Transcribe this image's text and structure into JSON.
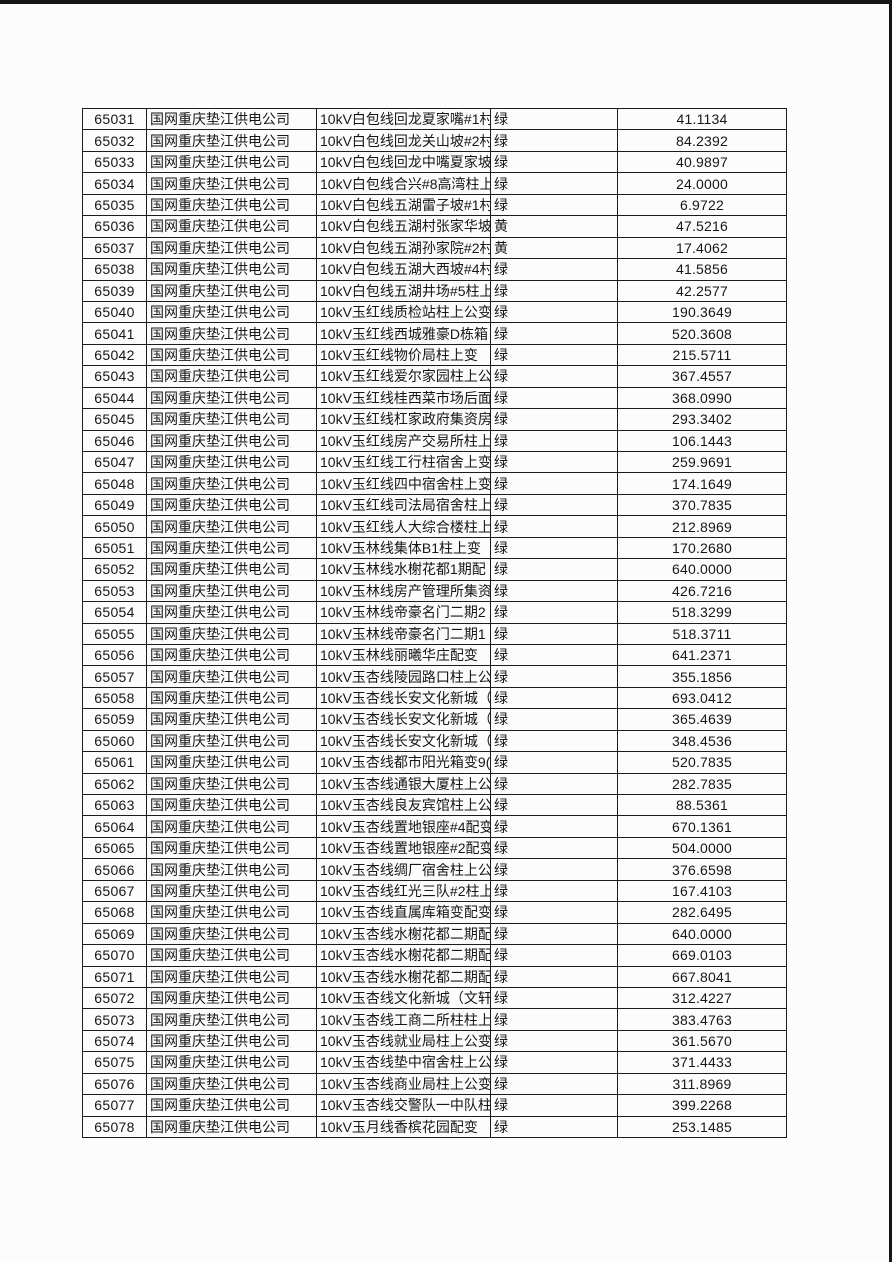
{
  "page": {
    "background_color": "#fcfcfc",
    "scan_edge_color": "#161616"
  },
  "table": {
    "columns": [
      "id",
      "company",
      "description",
      "status",
      "value"
    ],
    "status_colors": {
      "green_label": "绿",
      "yellow_label": "黄"
    },
    "rows": [
      {
        "id": "65031",
        "company": "国网重庆垫江供电公司",
        "description": "10kV白包线回龙夏家嘴#1村",
        "status": "绿",
        "value": "41.1134"
      },
      {
        "id": "65032",
        "company": "国网重庆垫江供电公司",
        "description": "10kV白包线回龙关山坡#2村",
        "status": "绿",
        "value": "84.2392"
      },
      {
        "id": "65033",
        "company": "国网重庆垫江供电公司",
        "description": "10kV白包线回龙中嘴夏家坡",
        "status": "绿",
        "value": "40.9897"
      },
      {
        "id": "65034",
        "company": "国网重庆垫江供电公司",
        "description": "10kV白包线合兴#8高湾柱上",
        "status": "绿",
        "value": "24.0000"
      },
      {
        "id": "65035",
        "company": "国网重庆垫江供电公司",
        "description": "10kV白包线五湖雷子坡#1村",
        "status": "绿",
        "value": "6.9722"
      },
      {
        "id": "65036",
        "company": "国网重庆垫江供电公司",
        "description": "10kV白包线五湖村张家华坡",
        "status": "黄",
        "value": "47.5216"
      },
      {
        "id": "65037",
        "company": "国网重庆垫江供电公司",
        "description": "10kV白包线五湖孙家院#2村",
        "status": "黄",
        "value": "17.4062"
      },
      {
        "id": "65038",
        "company": "国网重庆垫江供电公司",
        "description": "10kV白包线五湖大西坡#4村",
        "status": "绿",
        "value": "41.5856"
      },
      {
        "id": "65039",
        "company": "国网重庆垫江供电公司",
        "description": "10kV白包线五湖井场#5柱上",
        "status": "绿",
        "value": "42.2577"
      },
      {
        "id": "65040",
        "company": "国网重庆垫江供电公司",
        "description": "10kV玉红线质检站柱上公变",
        "status": "绿",
        "value": "190.3649"
      },
      {
        "id": "65041",
        "company": "国网重庆垫江供电公司",
        "description": "10kV玉红线西城雅豪D栋箱",
        "status": "绿",
        "value": "520.3608"
      },
      {
        "id": "65042",
        "company": "国网重庆垫江供电公司",
        "description": "10kV玉红线物价局柱上变",
        "status": "绿",
        "value": "215.5711"
      },
      {
        "id": "65043",
        "company": "国网重庆垫江供电公司",
        "description": "10kV玉红线爱尔家园柱上公",
        "status": "绿",
        "value": "367.4557"
      },
      {
        "id": "65044",
        "company": "国网重庆垫江供电公司",
        "description": "10kV玉红线桂西菜市场后面",
        "status": "绿",
        "value": "368.0990"
      },
      {
        "id": "65045",
        "company": "国网重庆垫江供电公司",
        "description": "10kV玉红线杠家政府集资房",
        "status": "绿",
        "value": "293.3402"
      },
      {
        "id": "65046",
        "company": "国网重庆垫江供电公司",
        "description": "10kV玉红线房产交易所柱上",
        "status": "绿",
        "value": "106.1443"
      },
      {
        "id": "65047",
        "company": "国网重庆垫江供电公司",
        "description": "10kV玉红线工行柱宿舍上变",
        "status": "绿",
        "value": "259.9691"
      },
      {
        "id": "65048",
        "company": "国网重庆垫江供电公司",
        "description": "10kV玉红线四中宿舍柱上变",
        "status": "绿",
        "value": "174.1649"
      },
      {
        "id": "65049",
        "company": "国网重庆垫江供电公司",
        "description": "10kV玉红线司法局宿舍柱上",
        "status": "绿",
        "value": "370.7835"
      },
      {
        "id": "65050",
        "company": "国网重庆垫江供电公司",
        "description": "10kV玉红线人大综合楼柱上",
        "status": "绿",
        "value": "212.8969"
      },
      {
        "id": "65051",
        "company": "国网重庆垫江供电公司",
        "description": "10kV玉林线集体B1柱上变",
        "status": "绿",
        "value": "170.2680"
      },
      {
        "id": "65052",
        "company": "国网重庆垫江供电公司",
        "description": "10kV玉林线水榭花都1期配",
        "status": "绿",
        "value": "640.0000"
      },
      {
        "id": "65053",
        "company": "国网重庆垫江供电公司",
        "description": "10kV玉林线房产管理所集资",
        "status": "绿",
        "value": "426.7216"
      },
      {
        "id": "65054",
        "company": "国网重庆垫江供电公司",
        "description": "10kV玉林线帝豪名门二期2",
        "status": "绿",
        "value": "518.3299"
      },
      {
        "id": "65055",
        "company": "国网重庆垫江供电公司",
        "description": "10kV玉林线帝豪名门二期1",
        "status": "绿",
        "value": "518.3711"
      },
      {
        "id": "65056",
        "company": "国网重庆垫江供电公司",
        "description": "10kV玉林线丽曦华庄配变",
        "status": "绿",
        "value": "641.2371"
      },
      {
        "id": "65057",
        "company": "国网重庆垫江供电公司",
        "description": "10kV玉杏线陵园路口柱上公",
        "status": "绿",
        "value": "355.1856"
      },
      {
        "id": "65058",
        "company": "国网重庆垫江供电公司",
        "description": "10kV玉杏线长安文化新城（",
        "status": "绿",
        "value": "693.0412"
      },
      {
        "id": "65059",
        "company": "国网重庆垫江供电公司",
        "description": "10kV玉杏线长安文化新城（",
        "status": "绿",
        "value": "365.4639"
      },
      {
        "id": "65060",
        "company": "国网重庆垫江供电公司",
        "description": "10kV玉杏线长安文化新城（",
        "status": "绿",
        "value": "348.4536"
      },
      {
        "id": "65061",
        "company": "国网重庆垫江供电公司",
        "description": "10kV玉杏线都市阳光箱变9(",
        "status": "绿",
        "value": "520.7835"
      },
      {
        "id": "65062",
        "company": "国网重庆垫江供电公司",
        "description": "10kV玉杏线通银大厦柱上公",
        "status": "绿",
        "value": "282.7835"
      },
      {
        "id": "65063",
        "company": "国网重庆垫江供电公司",
        "description": "10kV玉杏线良友宾馆柱上公",
        "status": "绿",
        "value": "88.5361"
      },
      {
        "id": "65064",
        "company": "国网重庆垫江供电公司",
        "description": "10kV玉杏线置地银座#4配变",
        "status": "绿",
        "value": "670.1361"
      },
      {
        "id": "65065",
        "company": "国网重庆垫江供电公司",
        "description": "10kV玉杏线置地银座#2配变",
        "status": "绿",
        "value": "504.0000"
      },
      {
        "id": "65066",
        "company": "国网重庆垫江供电公司",
        "description": "10kV玉杏线绸厂宿舍柱上公",
        "status": "绿",
        "value": "376.6598"
      },
      {
        "id": "65067",
        "company": "国网重庆垫江供电公司",
        "description": "10kV玉杏线红光三队#2柱上",
        "status": "绿",
        "value": "167.4103"
      },
      {
        "id": "65068",
        "company": "国网重庆垫江供电公司",
        "description": "10kV玉杏线直属库箱变配变",
        "status": "绿",
        "value": "282.6495"
      },
      {
        "id": "65069",
        "company": "国网重庆垫江供电公司",
        "description": "10kV玉杏线水榭花都二期配",
        "status": "绿",
        "value": "640.0000"
      },
      {
        "id": "65070",
        "company": "国网重庆垫江供电公司",
        "description": "10kV玉杏线水榭花都二期配",
        "status": "绿",
        "value": "669.0103"
      },
      {
        "id": "65071",
        "company": "国网重庆垫江供电公司",
        "description": "10kV玉杏线水榭花都二期配",
        "status": "绿",
        "value": "667.8041"
      },
      {
        "id": "65072",
        "company": "国网重庆垫江供电公司",
        "description": "10kV玉杏线文化新城（文轩",
        "status": "绿",
        "value": "312.4227"
      },
      {
        "id": "65073",
        "company": "国网重庆垫江供电公司",
        "description": "10kV玉杏线工商二所柱柱上",
        "status": "绿",
        "value": "383.4763"
      },
      {
        "id": "65074",
        "company": "国网重庆垫江供电公司",
        "description": "10kV玉杏线就业局柱上公变",
        "status": "绿",
        "value": "361.5670"
      },
      {
        "id": "65075",
        "company": "国网重庆垫江供电公司",
        "description": "10kV玉杏线垫中宿舍柱上公",
        "status": "绿",
        "value": "371.4433"
      },
      {
        "id": "65076",
        "company": "国网重庆垫江供电公司",
        "description": "10kV玉杏线商业局柱上公变",
        "status": "绿",
        "value": "311.8969"
      },
      {
        "id": "65077",
        "company": "国网重庆垫江供电公司",
        "description": "10kV玉杏线交警队一中队柱",
        "status": "绿",
        "value": "399.2268"
      },
      {
        "id": "65078",
        "company": "国网重庆垫江供电公司",
        "description": "10kV玉月线香槟花园配变",
        "status": "绿",
        "value": "253.1485"
      }
    ]
  }
}
